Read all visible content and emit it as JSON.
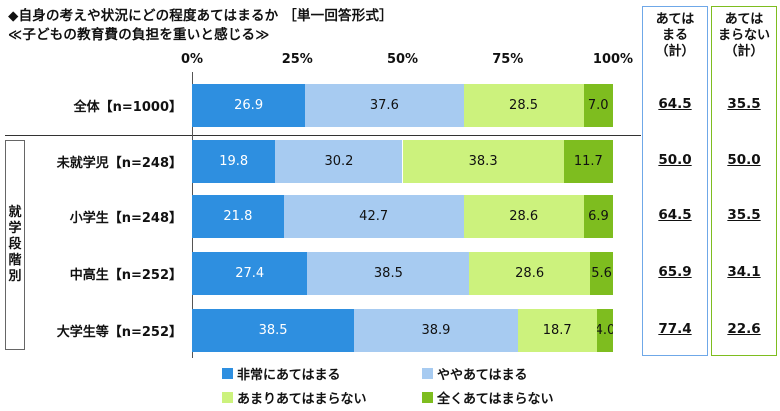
{
  "title": {
    "line1": "◆自身の考えや状況にどの程度あてはまるか ［単一回答形式］",
    "line2": "≪子どもの教育費の負担を重いと感じる≫"
  },
  "summary_headers": {
    "col1": [
      "あては",
      "まる",
      "（計）"
    ],
    "col2": [
      "あては",
      "まらない",
      "（計）"
    ]
  },
  "group_label": "就学段階別",
  "colors": {
    "very": "#2e8fe0",
    "somewhat": "#a7cbf1",
    "not_much": "#ccf27d",
    "not_at_all": "#7ebd1f",
    "box_blue": "#6fa8e8",
    "box_green": "#7ebd1f"
  },
  "chart_data": {
    "type": "bar",
    "stacked": true,
    "orientation": "horizontal",
    "x_ticks": [
      "0%",
      "25%",
      "50%",
      "75%",
      "100%"
    ],
    "xlim": [
      0,
      100
    ],
    "legend_position": "bottom",
    "categories": [
      "全体【n=1000】",
      "未就学児【n=248】",
      "小学生【n=248】",
      "中高生【n=252】",
      "大学生等【n=252】"
    ],
    "series": [
      {
        "name": "非常にあてはまる",
        "values": [
          26.9,
          19.8,
          21.8,
          27.4,
          38.5
        ],
        "labels": [
          "26.9",
          "19.8",
          "21.8",
          "27.4",
          "38.5"
        ]
      },
      {
        "name": "ややあてはまる",
        "values": [
          37.6,
          30.2,
          42.7,
          38.5,
          38.9
        ],
        "labels": [
          "37.6",
          "30.2",
          "42.7",
          "38.5",
          "38.9"
        ]
      },
      {
        "name": "あまりあてはまらない",
        "values": [
          28.5,
          38.3,
          28.6,
          28.6,
          18.7
        ],
        "labels": [
          "28.5",
          "38.3",
          "28.6",
          "28.6",
          "18.7"
        ]
      },
      {
        "name": "全くあてはまらない",
        "values": [
          7.0,
          11.7,
          6.9,
          5.6,
          4.0
        ],
        "labels": [
          "7.0",
          "11.7",
          "6.9",
          "5.6",
          "4.0"
        ]
      }
    ],
    "totals_applies": [
      "64.5",
      "50.0",
      "64.5",
      "65.9",
      "77.4"
    ],
    "totals_not_applies": [
      "35.5",
      "50.0",
      "35.5",
      "34.1",
      "22.6"
    ]
  }
}
